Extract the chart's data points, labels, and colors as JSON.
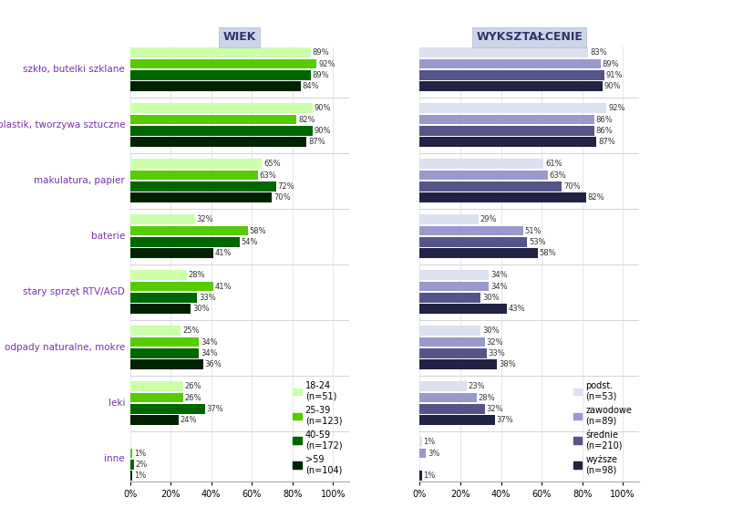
{
  "title_left": "WIEK",
  "title_right": "WYKSZTAŁCENIE",
  "categories": [
    "szkło, butelki szklane",
    "plastik, tworzywa sztuczne",
    "makulatura, papier",
    "baterie",
    "stary sprzęt RTV/AGD",
    "odpady naturalne, mokre",
    "leki",
    "inne"
  ],
  "wiek_data": [
    [
      89,
      90,
      65,
      32,
      28,
      25,
      26,
      0
    ],
    [
      92,
      82,
      63,
      58,
      41,
      34,
      26,
      1
    ],
    [
      89,
      90,
      72,
      54,
      33,
      34,
      37,
      2
    ],
    [
      84,
      87,
      70,
      41,
      30,
      36,
      24,
      1
    ]
  ],
  "wiek_colors": [
    "#ccffaa",
    "#55cc00",
    "#006600",
    "#002200"
  ],
  "wiek_legend_labels": [
    "18-24",
    "(n=51)",
    "25-39",
    "(n=123)",
    "40-59",
    "(n=172)",
    ">59",
    "(n=104)"
  ],
  "wiek_legend_colors": [
    "#ccffaa",
    "#55cc00",
    "#006600",
    "#002200"
  ],
  "wyksztalcenie_data": [
    [
      83,
      92,
      61,
      29,
      34,
      30,
      23,
      1
    ],
    [
      89,
      86,
      63,
      51,
      34,
      32,
      28,
      3
    ],
    [
      91,
      86,
      70,
      53,
      30,
      33,
      32,
      0
    ],
    [
      90,
      87,
      82,
      58,
      43,
      38,
      37,
      1
    ]
  ],
  "wyksztalcenie_colors": [
    "#dde0ef",
    "#9999cc",
    "#555588",
    "#222244"
  ],
  "wyksztalcenie_legend_labels": [
    "podst.",
    "(n=53)",
    "zawodowe",
    "(n=89)",
    "średnie",
    "(n=210)",
    "wyższe",
    "(n=98)"
  ],
  "wyksztalcenie_legend_colors": [
    "#dde0ef",
    "#9999cc",
    "#555588",
    "#222244"
  ],
  "background_color": "#ffffff",
  "title_bg_color": "#ccd5e8",
  "label_color": "#7733aa",
  "value_color": "#333333"
}
